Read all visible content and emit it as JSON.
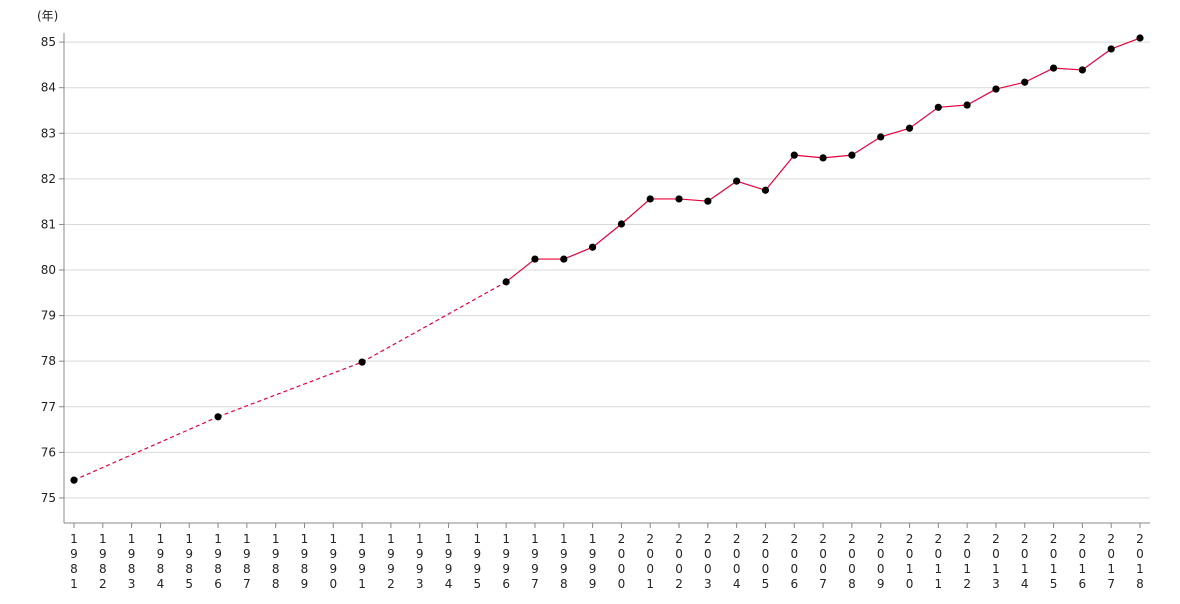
{
  "chart_data": {
    "type": "line",
    "ylabel": "(年)",
    "xlabel": "",
    "ylim": [
      74.45,
      85.2
    ],
    "yticks": [
      75,
      76,
      77,
      78,
      79,
      80,
      81,
      82,
      83,
      84,
      85
    ],
    "grid": "horizontal",
    "line_color": "#e8003a",
    "marker_color": "#000000",
    "x_categories": [
      "1981",
      "1982",
      "1983",
      "1984",
      "1985",
      "1986",
      "1987",
      "1988",
      "1989",
      "1990",
      "1991",
      "1992",
      "1993",
      "1994",
      "1995",
      "1996",
      "1997",
      "1998",
      "1999",
      "2000",
      "2001",
      "2002",
      "2003",
      "2004",
      "2005",
      "2006",
      "2007",
      "2008",
      "2009",
      "2010",
      "2011",
      "2012",
      "2013",
      "2014",
      "2015",
      "2016",
      "2017",
      "2018"
    ],
    "points": [
      {
        "x": "1981",
        "y": 75.39
      },
      {
        "x": "1986",
        "y": 76.78
      },
      {
        "x": "1991",
        "y": 77.98
      },
      {
        "x": "1996",
        "y": 79.74
      },
      {
        "x": "1997",
        "y": 80.24
      },
      {
        "x": "1998",
        "y": 80.24
      },
      {
        "x": "1999",
        "y": 80.5
      },
      {
        "x": "2000",
        "y": 81.01
      },
      {
        "x": "2001",
        "y": 81.56
      },
      {
        "x": "2002",
        "y": 81.56
      },
      {
        "x": "2003",
        "y": 81.51
      },
      {
        "x": "2004",
        "y": 81.95
      },
      {
        "x": "2005",
        "y": 81.75
      },
      {
        "x": "2006",
        "y": 82.52
      },
      {
        "x": "2007",
        "y": 82.46
      },
      {
        "x": "2008",
        "y": 82.52
      },
      {
        "x": "2009",
        "y": 82.92
      },
      {
        "x": "2010",
        "y": 83.11
      },
      {
        "x": "2011",
        "y": 83.57
      },
      {
        "x": "2012",
        "y": 83.62
      },
      {
        "x": "2013",
        "y": 83.97
      },
      {
        "x": "2014",
        "y": 84.12
      },
      {
        "x": "2015",
        "y": 84.43
      },
      {
        "x": "2016",
        "y": 84.39
      },
      {
        "x": "2017",
        "y": 84.85
      },
      {
        "x": "2018",
        "y": 85.09
      }
    ],
    "dashed_until": "1996"
  }
}
